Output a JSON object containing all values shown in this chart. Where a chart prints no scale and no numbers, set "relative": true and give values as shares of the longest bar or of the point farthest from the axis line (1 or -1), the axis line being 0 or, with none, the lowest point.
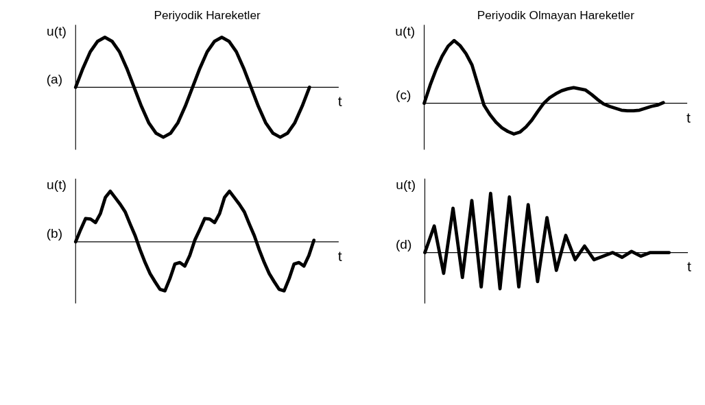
{
  "chart_data": [
    {
      "type": "line",
      "title": "Periyodik Hareketler",
      "ylabel": "u(t)",
      "xlabel": "t",
      "annotations": [
        "(a)"
      ],
      "relative": true,
      "categories": [
        null,
        null,
        null,
        null,
        null,
        null,
        null,
        null,
        null,
        null,
        null,
        null,
        null,
        null,
        null,
        null,
        null,
        null,
        null,
        null,
        null,
        null,
        null,
        null,
        null,
        null,
        null,
        null,
        null,
        null,
        null,
        null,
        null,
        null,
        null,
        null,
        null
      ],
      "series": [
        {
          "color": "#000000",
          "values": [
            0,
            0.38,
            0.71,
            0.92,
            1,
            0.92,
            0.71,
            0.38,
            0,
            -0.38,
            -0.71,
            -0.92,
            -1,
            -0.92,
            -0.71,
            -0.38,
            0,
            0.38,
            0.71,
            0.92,
            1,
            0.92,
            0.71,
            0.38,
            0,
            -0.38,
            -0.71,
            -0.92,
            -1,
            -0.92,
            -0.71,
            -0.38,
            0,
            null,
            null,
            null,
            null
          ]
        }
      ]
    },
    {
      "type": "line",
      "title": "Periyodik Olmayan Hareketler",
      "ylabel": "u(t)",
      "xlabel": "t",
      "annotations": [
        "(c)"
      ],
      "relative": true,
      "categories": [
        null,
        null,
        null,
        null,
        null,
        null,
        null,
        null,
        null,
        null,
        null,
        null,
        null,
        null,
        null,
        null,
        null,
        null,
        null,
        null,
        null,
        null,
        null,
        null,
        null,
        null,
        null,
        null,
        null,
        null,
        null,
        null,
        null,
        null,
        null,
        null,
        null,
        null,
        null,
        null,
        null,
        null,
        null,
        null,
        null
      ],
      "series": [
        {
          "color": "#000000",
          "values": [
            0,
            0.29,
            0.54,
            0.75,
            0.91,
            1,
            0.92,
            0.79,
            0.61,
            0.29,
            -0.03,
            -0.18,
            -0.3,
            -0.39,
            -0.45,
            -0.49,
            -0.46,
            -0.38,
            -0.27,
            -0.13,
            0,
            0.09,
            0.15,
            0.2,
            0.23,
            0.25,
            0.23,
            0.21,
            0.14,
            0.06,
            -0.01,
            -0.05,
            -0.08,
            -0.11,
            -0.12,
            -0.12,
            -0.11,
            -0.08,
            -0.05,
            -0.03,
            0.01,
            null,
            null,
            null,
            null
          ]
        }
      ]
    },
    {
      "type": "line",
      "ylabel": "u(t)",
      "xlabel": "t",
      "annotations": [
        "(b)"
      ],
      "relative": true,
      "categories": [
        null,
        null,
        null,
        null,
        null,
        null,
        null,
        null,
        null,
        null,
        null,
        null,
        null,
        null,
        null,
        null,
        null,
        null,
        null,
        null,
        null,
        null,
        null,
        null,
        null,
        null,
        null,
        null,
        null,
        null,
        null,
        null,
        null,
        null,
        null,
        null,
        null,
        null,
        null,
        null,
        null,
        null,
        null,
        null,
        null,
        null,
        null,
        null,
        null,
        null,
        null,
        null,
        null,
        null
      ],
      "series": [
        {
          "color": "#000000",
          "values": [
            0,
            0.24,
            0.46,
            0.45,
            0.38,
            0.56,
            0.88,
            1,
            0.87,
            0.74,
            0.59,
            0.35,
            0.12,
            -0.16,
            -0.41,
            -0.63,
            -0.79,
            -0.94,
            -0.97,
            -0.73,
            -0.44,
            -0.41,
            -0.48,
            -0.27,
            0.03,
            0.24,
            0.46,
            0.45,
            0.38,
            0.56,
            0.88,
            1,
            0.87,
            0.74,
            0.59,
            0.35,
            0.12,
            -0.16,
            -0.41,
            -0.63,
            -0.79,
            -0.94,
            -0.97,
            -0.73,
            -0.44,
            -0.41,
            -0.48,
            -0.27,
            0.03,
            null,
            null,
            null,
            null,
            null
          ]
        }
      ]
    },
    {
      "type": "line",
      "ylabel": "u(t)",
      "xlabel": "t",
      "annotations": [
        "(d)"
      ],
      "relative": true,
      "categories": [
        null,
        null,
        null,
        null,
        null,
        null,
        null,
        null,
        null,
        null,
        null,
        null,
        null,
        null,
        null,
        null,
        null,
        null,
        null,
        null,
        null,
        null,
        null,
        null,
        null,
        null,
        null,
        null,
        null
      ],
      "series": [
        {
          "color": "#000000",
          "values": [
            0,
            0.45,
            -0.35,
            0.75,
            -0.42,
            0.88,
            -0.58,
            1,
            -0.61,
            0.94,
            -0.58,
            0.81,
            -0.49,
            0.59,
            -0.3,
            0.29,
            -0.12,
            0.11,
            -0.12,
            -0.06,
            0,
            -0.08,
            0.02,
            -0.06,
            0,
            0,
            0,
            null,
            null
          ]
        }
      ]
    }
  ]
}
